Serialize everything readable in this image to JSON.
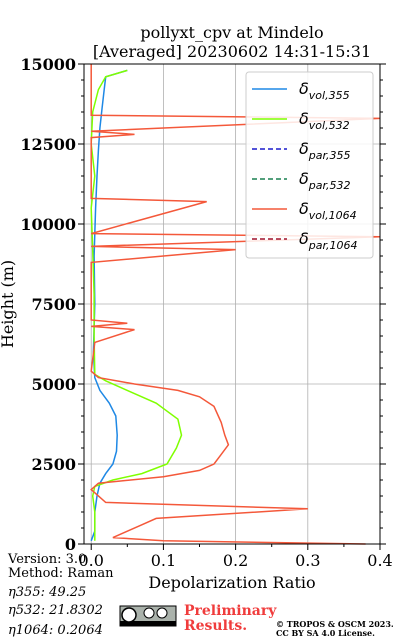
{
  "chart_data": {
    "type": "line",
    "title": "pollyxt_cpv at Mindelo",
    "subtitle": "[Averaged] 20230602 14:31-15:31",
    "xlabel": "Depolarization Ratio",
    "ylabel": "Height (m)",
    "xlim": [
      -0.01,
      0.4
    ],
    "ylim": [
      0,
      15000
    ],
    "xticks": [
      "0.0",
      "0.1",
      "0.2",
      "0.3",
      "0.4"
    ],
    "yticks": [
      "0",
      "2500",
      "5000",
      "7500",
      "10000",
      "12500",
      "15000"
    ],
    "grid": true,
    "legend_position": "top-right",
    "series": [
      {
        "name": "δ_vol,355",
        "legend_main": "δ",
        "legend_sub": "vol,355",
        "color": "#1e88e5",
        "dash": "solid",
        "points": [
          [
            0.0,
            100
          ],
          [
            0.005,
            400
          ],
          [
            0.005,
            1000
          ],
          [
            0.008,
            1500
          ],
          [
            0.012,
            1900
          ],
          [
            0.02,
            2200
          ],
          [
            0.03,
            2500
          ],
          [
            0.035,
            2900
          ],
          [
            0.036,
            3400
          ],
          [
            0.034,
            4000
          ],
          [
            0.025,
            4400
          ],
          [
            0.012,
            4800
          ],
          [
            0.005,
            5200
          ],
          [
            0.003,
            6000
          ],
          [
            0.005,
            7500
          ],
          [
            0.004,
            9000
          ],
          [
            0.006,
            10500
          ],
          [
            0.008,
            11500
          ],
          [
            0.01,
            12300
          ],
          [
            0.012,
            13000
          ],
          [
            0.015,
            13600
          ],
          [
            0.018,
            14200
          ],
          [
            0.02,
            14600
          ],
          [
            0.05,
            14800
          ]
        ]
      },
      {
        "name": "δ_vol,532",
        "legend_main": "δ",
        "legend_sub": "vol,532",
        "color": "#7fff00",
        "dash": "solid",
        "points": [
          [
            0.005,
            100
          ],
          [
            0.005,
            500
          ],
          [
            0.005,
            1000
          ],
          [
            0.002,
            1500
          ],
          [
            0.005,
            1800
          ],
          [
            0.03,
            2000
          ],
          [
            0.07,
            2200
          ],
          [
            0.105,
            2500
          ],
          [
            0.118,
            3000
          ],
          [
            0.125,
            3400
          ],
          [
            0.12,
            3900
          ],
          [
            0.09,
            4400
          ],
          [
            0.05,
            4800
          ],
          [
            0.02,
            5100
          ],
          [
            0.005,
            5300
          ],
          [
            0.004,
            6500
          ],
          [
            0.004,
            7800
          ],
          [
            0.002,
            9200
          ],
          [
            0.0,
            10500
          ],
          [
            0.005,
            11500
          ],
          [
            0.0,
            12500
          ],
          [
            0.002,
            13500
          ],
          [
            0.01,
            14200
          ],
          [
            0.02,
            14600
          ],
          [
            0.05,
            14800
          ]
        ]
      },
      {
        "name": "δ_par,355",
        "legend_main": "δ",
        "legend_sub": "par,355",
        "color": "#1a1acc",
        "dash": "dashed",
        "points": []
      },
      {
        "name": "δ_par,532",
        "legend_main": "δ",
        "legend_sub": "par,532",
        "color": "#1a8050",
        "dash": "dashed",
        "points": []
      },
      {
        "name": "δ_vol,1064",
        "legend_main": "δ",
        "legend_sub": "vol,1064",
        "color": "#f4583a",
        "dash": "solid",
        "points": [
          [
            0.38,
            0
          ],
          [
            0.1,
            100
          ],
          [
            0.03,
            200
          ],
          [
            0.05,
            400
          ],
          [
            0.07,
            600
          ],
          [
            0.09,
            800
          ],
          [
            0.3,
            1100
          ],
          [
            0.02,
            1300
          ],
          [
            0.0,
            1700
          ],
          [
            0.01,
            1900
          ],
          [
            0.1,
            2100
          ],
          [
            0.15,
            2300
          ],
          [
            0.17,
            2500
          ],
          [
            0.18,
            2800
          ],
          [
            0.19,
            3100
          ],
          [
            0.185,
            3400
          ],
          [
            0.18,
            3800
          ],
          [
            0.17,
            4300
          ],
          [
            0.15,
            4600
          ],
          [
            0.12,
            4800
          ],
          [
            0.06,
            5000
          ],
          [
            0.01,
            5200
          ],
          [
            0.0,
            5400
          ],
          [
            0.005,
            6300
          ],
          [
            0.06,
            6700
          ],
          [
            0.0,
            6800
          ],
          [
            0.05,
            6900
          ],
          [
            0.0,
            7000
          ],
          [
            0.0,
            8800
          ],
          [
            0.2,
            9200
          ],
          [
            0.0,
            9300
          ],
          [
            0.4,
            9600
          ],
          [
            0.0,
            9700
          ],
          [
            0.16,
            10700
          ],
          [
            0.0,
            10800
          ],
          [
            0.0,
            12700
          ],
          [
            0.06,
            12800
          ],
          [
            0.0,
            12900
          ],
          [
            0.4,
            13300
          ],
          [
            0.0,
            13400
          ],
          [
            0.0,
            15000
          ]
        ]
      },
      {
        "name": "δ_par,1064",
        "legend_main": "δ",
        "legend_sub": "par,1064",
        "color": "#a0102a",
        "dash": "dashed",
        "points": []
      }
    ]
  },
  "footer": {
    "version": "Version: 3.0",
    "method": "Method: Raman",
    "eta355": "η355:  49.25",
    "eta532": "η532: 21.8302",
    "eta1064": "η1064: 0.2064",
    "preliminary": "Preliminary",
    "results": "Results.",
    "copyright": "© TROPOS & OSCM 2023.",
    "license": "CC BY SA 4.0 License.",
    "cc_badge_text": "CC BY SA"
  }
}
